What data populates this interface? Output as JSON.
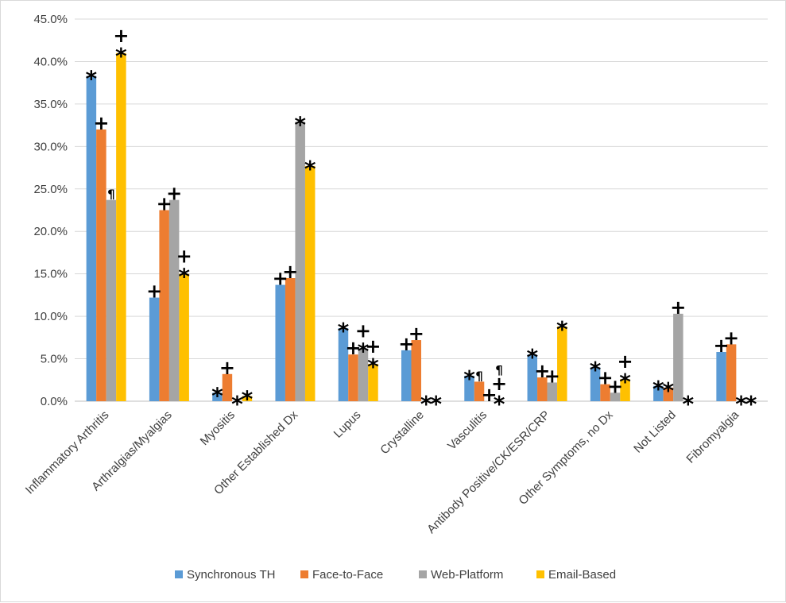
{
  "chart_data": {
    "type": "bar",
    "title": "",
    "xlabel": "",
    "ylabel": "",
    "ylim": [
      0,
      45
    ],
    "ytick_step": 5,
    "ytick_format": "percent_1dp",
    "grid": true,
    "legend_position": "bottom",
    "categories": [
      "Inflammatory Arthritis",
      "Arthralgias/Myalgias",
      "Myositis",
      "Other Established Dx",
      "Lupus",
      "Crystalline",
      "Vasculitis",
      "Antibody Positive/CK/ESR/CRP",
      "Other Symptoms, no Dx",
      "Not Listed",
      "Fibromyalgia"
    ],
    "series": [
      {
        "name": "Synchronous TH",
        "color": "#5B9BD5",
        "values": [
          38.3,
          12.2,
          1.0,
          13.7,
          8.6,
          6.0,
          3.0,
          5.5,
          4.0,
          1.8,
          5.8
        ]
      },
      {
        "name": "Face-to-Face",
        "color": "#ED7D31",
        "values": [
          32.0,
          22.5,
          3.2,
          14.5,
          5.5,
          7.2,
          2.3,
          2.8,
          2.0,
          1.6,
          6.7
        ]
      },
      {
        "name": "Web-Platform",
        "color": "#A5A5A5",
        "values": [
          23.7,
          23.7,
          0.0,
          32.9,
          6.2,
          0.0,
          0.0,
          2.2,
          1.0,
          10.3,
          0.0
        ]
      },
      {
        "name": "Email-Based",
        "color": "#FFC000",
        "values": [
          41.0,
          15.0,
          0.6,
          27.7,
          4.4,
          0.0,
          0.0,
          8.8,
          2.6,
          0.0,
          0.0
        ]
      }
    ],
    "annotations": [
      [
        "*",
        "+",
        "*",
        "+",
        "*",
        "+",
        "*",
        "*",
        "*",
        "*",
        "+"
      ],
      [
        "+",
        "+",
        "+",
        "+",
        "+",
        "+",
        "¶",
        "+",
        "+",
        "*",
        "+"
      ],
      [
        "¶",
        "+",
        "*",
        "*",
        "+*",
        "*",
        "+",
        "+",
        "+",
        "+",
        "*"
      ],
      [
        "+*",
        "+*",
        "*",
        "*",
        "+*",
        "*",
        "¶+*",
        "*",
        "+*",
        "*",
        "*"
      ]
    ]
  }
}
